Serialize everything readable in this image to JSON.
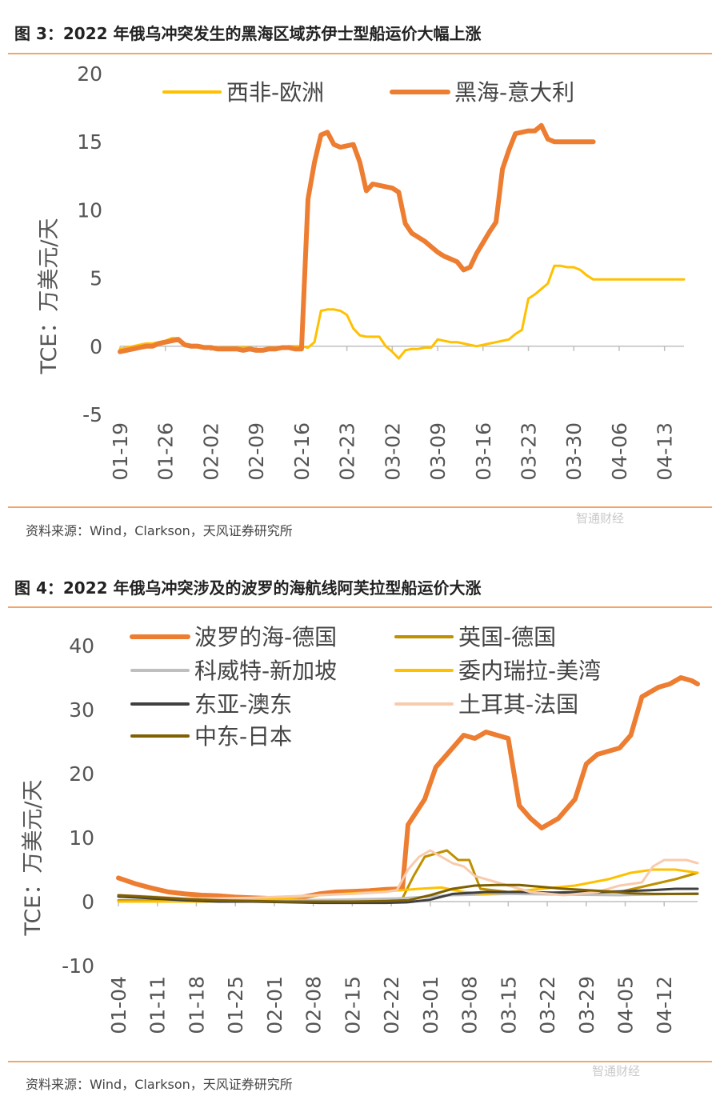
{
  "figures": [
    {
      "title": "图 3：2022 年俄乌冲突发生的黑海区域苏伊士型船运价大幅上涨",
      "source": "资料来源：Wind，Clarkson，天风证券研究所",
      "watermark": "智通财经"
    },
    {
      "title": "图 4：2022 年俄乌冲突涉及的波罗的海航线阿芙拉型船运价大涨",
      "source": "资料来源：Wind，Clarkson，天风证券研究所",
      "watermark": "智通财经"
    }
  ],
  "chart_data": [
    {
      "type": "line",
      "ylabel": "TCE：万美元/天",
      "ylim": [
        -5,
        20
      ],
      "yticks": [
        "20",
        "15",
        "10",
        "5",
        "0",
        "-5"
      ],
      "xticks": [
        "01-19",
        "01-26",
        "02-02",
        "02-09",
        "02-16",
        "02-23",
        "03-02",
        "03-09",
        "03-16",
        "03-23",
        "03-30",
        "04-06",
        "04-13"
      ],
      "legend": "top",
      "series": [
        {
          "name": "西非-欧洲",
          "color": "#ffc000",
          "x": [
            0,
            1,
            2,
            3,
            4,
            5,
            6,
            7,
            8,
            9,
            10,
            11,
            12,
            13,
            14,
            15,
            16,
            17,
            18,
            19,
            20,
            21,
            22,
            23,
            24,
            25,
            26,
            27,
            28,
            29,
            30,
            31,
            32,
            33,
            34,
            35,
            36,
            37,
            38,
            39,
            40,
            41,
            42,
            43,
            44,
            45,
            46,
            47,
            48,
            49,
            50,
            51,
            52,
            53,
            54,
            55,
            56,
            57,
            58,
            59,
            60,
            61,
            62,
            63,
            64,
            65,
            66,
            67,
            68,
            69,
            70,
            71,
            72,
            73,
            74,
            75,
            76,
            77,
            78,
            79,
            80,
            81,
            82,
            83,
            84,
            85,
            86,
            87
          ],
          "y": [
            -0.2,
            -0.1,
            0,
            0.1,
            0.2,
            0.2,
            0.3,
            0.4,
            0.6,
            0.6,
            0.2,
            0.1,
            0.1,
            0,
            0,
            -0.1,
            -0.1,
            -0.1,
            -0.1,
            -0.1,
            -0.1,
            -0.2,
            -0.2,
            -0.1,
            -0.1,
            -0.1,
            0,
            0,
            0,
            -0.1,
            0.3,
            2.6,
            2.7,
            2.7,
            2.6,
            2.3,
            1.3,
            0.8,
            0.7,
            0.7,
            0.7,
            0,
            -0.4,
            -0.9,
            -0.3,
            -0.2,
            -0.2,
            -0.1,
            -0.1,
            0.5,
            0.4,
            0.3,
            0.3,
            0.2,
            0.1,
            0,
            0.1,
            0.2,
            0.3,
            0.4,
            0.5,
            0.9,
            1.2,
            3.5,
            3.8,
            4.2,
            4.6,
            5.9,
            5.9,
            5.8,
            5.8,
            5.6,
            5.2,
            4.9,
            4.9,
            4.9,
            4.9,
            4.9,
            4.9,
            4.9,
            4.9,
            4.9,
            4.9,
            4.9,
            4.9,
            4.9,
            4.9,
            4.9
          ]
        },
        {
          "name": "黑海-意大利",
          "color": "#ed7d31",
          "x": [
            0,
            1,
            2,
            3,
            4,
            5,
            6,
            7,
            8,
            9,
            10,
            11,
            12,
            13,
            14,
            15,
            16,
            17,
            18,
            19,
            20,
            21,
            22,
            23,
            24,
            25,
            26,
            27,
            28,
            29,
            30,
            31,
            32,
            33,
            34,
            35,
            36,
            37,
            38,
            39,
            40,
            41,
            42,
            43,
            44,
            45,
            46,
            47,
            48,
            49,
            50,
            51,
            52,
            53,
            54,
            55,
            56,
            57,
            58,
            59,
            60,
            61,
            62,
            63,
            64,
            65,
            66,
            67,
            68,
            69,
            70,
            71,
            72,
            73
          ],
          "y": [
            -0.4,
            -0.3,
            -0.2,
            -0.1,
            0,
            0,
            0.2,
            0.3,
            0.4,
            0.5,
            0.1,
            0,
            0,
            -0.1,
            -0.1,
            -0.2,
            -0.2,
            -0.2,
            -0.2,
            -0.3,
            -0.2,
            -0.3,
            -0.3,
            -0.2,
            -0.2,
            -0.1,
            -0.1,
            -0.2,
            -0.2,
            10.8,
            13.5,
            15.5,
            15.7,
            14.8,
            14.6,
            14.7,
            14.8,
            13.5,
            11.4,
            11.9,
            11.8,
            11.7,
            11.6,
            11.3,
            9,
            8.3,
            8,
            7.7,
            7.3,
            6.9,
            6.6,
            6.4,
            6.2,
            5.6,
            5.8,
            6.8,
            7.6,
            8.4,
            9.1,
            13,
            14.4,
            15.6,
            15.7,
            15.8,
            15.8,
            16.2,
            15.2,
            15,
            15,
            15,
            15,
            15,
            15,
            15
          ]
        }
      ]
    },
    {
      "type": "line",
      "ylabel": "TCE：万美元/天",
      "ylim": [
        -10,
        40
      ],
      "yticks": [
        "40",
        "30",
        "20",
        "10",
        "0",
        "-10"
      ],
      "xticks": [
        "01-04",
        "01-11",
        "01-18",
        "01-25",
        "02-01",
        "02-08",
        "02-15",
        "02-22",
        "03-01",
        "03-08",
        "03-15",
        "03-22",
        "03-29",
        "04-05",
        "04-12"
      ],
      "legend": "top-left",
      "series": [
        {
          "name": "波罗的海-德国",
          "color": "#ed7d31",
          "x": [
            0,
            3,
            6,
            9,
            12,
            15,
            18,
            21,
            24,
            27,
            30,
            33,
            36,
            39,
            42,
            45,
            48,
            51,
            52,
            55,
            57,
            60,
            62,
            64,
            66,
            68,
            70,
            72,
            74,
            76,
            79,
            80,
            82,
            84,
            86,
            88,
            90,
            92,
            94,
            96,
            97,
            99,
            101,
            103,
            104
          ],
          "y": [
            3.7,
            2.8,
            2.1,
            1.5,
            1.2,
            1,
            0.9,
            0.7,
            0.6,
            0.5,
            0.5,
            0.7,
            1.2,
            1.5,
            1.6,
            1.7,
            1.9,
            2,
            12,
            16,
            21,
            24,
            26,
            25.5,
            26.5,
            26,
            25.5,
            15,
            13,
            11.5,
            13,
            14,
            16,
            21.5,
            23,
            23.5,
            24,
            26,
            32,
            33,
            33.5,
            34,
            35,
            34.5,
            34
          ]
        },
        {
          "name": "英国-德国",
          "color": "#bf9000",
          "x": [
            0,
            10,
            20,
            30,
            40,
            50,
            51,
            53,
            55,
            57,
            59,
            61,
            63,
            65,
            70,
            80,
            90,
            95,
            100,
            104
          ],
          "y": [
            0.2,
            0.1,
            0,
            0,
            0,
            0,
            0.5,
            4,
            7,
            7.5,
            8,
            6.5,
            6.5,
            2,
            1.5,
            1.2,
            1.5,
            2.5,
            3.5,
            4.5
          ]
        },
        {
          "name": "科威特-新加坡",
          "color": "#bfbfbf",
          "x": [
            0,
            10,
            20,
            30,
            40,
            50,
            60,
            70,
            80,
            90,
            100,
            104
          ],
          "y": [
            0.8,
            0.5,
            0.3,
            0.2,
            0.3,
            0.5,
            1,
            1.2,
            1.1,
            1,
            1.2,
            1.3
          ]
        },
        {
          "name": "委内瑞拉-美湾",
          "color": "#ffc000",
          "x": [
            0,
            8,
            16,
            24,
            30,
            36,
            42,
            48,
            54,
            58,
            62,
            66,
            70,
            76,
            82,
            88,
            92,
            96,
            100,
            104
          ],
          "y": [
            0,
            0,
            0,
            0.2,
            0.5,
            1,
            1.3,
            1.6,
            2,
            2.2,
            1.5,
            1.2,
            1.5,
            2,
            2.5,
            3.5,
            4.5,
            5,
            5,
            4.5
          ]
        },
        {
          "name": "东亚-澳东",
          "color": "#404040",
          "x": [
            0,
            6,
            12,
            18,
            24,
            30,
            36,
            42,
            48,
            52,
            56,
            60,
            66,
            72,
            78,
            84,
            90,
            96,
            100,
            104
          ],
          "y": [
            0.8,
            0.5,
            0.2,
            0,
            0,
            -0.1,
            -0.2,
            -0.2,
            -0.2,
            -0.1,
            0.3,
            1.2,
            1.5,
            1.5,
            1.4,
            1.5,
            1.6,
            1.8,
            2,
            2
          ]
        },
        {
          "name": "土耳其-法国",
          "color": "#f8cbad",
          "x": [
            0,
            6,
            12,
            18,
            24,
            30,
            36,
            42,
            48,
            50,
            52,
            54,
            56,
            58,
            60,
            62,
            64,
            68,
            74,
            80,
            86,
            90,
            94,
            96,
            98,
            100,
            102,
            104
          ],
          "y": [
            1,
            0.8,
            0.5,
            0.5,
            0.6,
            0.8,
            1,
            1.2,
            1.5,
            1.8,
            5,
            7,
            8,
            7,
            6,
            5.5,
            4,
            3,
            1.5,
            1,
            1.5,
            2.5,
            3,
            5.5,
            6.5,
            6.5,
            6.5,
            6
          ]
        },
        {
          "name": "中东-日本",
          "color": "#7f6000",
          "x": [
            0,
            6,
            12,
            18,
            24,
            30,
            36,
            42,
            48,
            52,
            56,
            60,
            64,
            68,
            72,
            76,
            80,
            84,
            88,
            92,
            96,
            100,
            104
          ],
          "y": [
            1,
            0.7,
            0.4,
            0.2,
            0.1,
            0,
            0,
            0,
            0.1,
            0.2,
            1,
            2,
            2.5,
            2.6,
            2.6,
            2.3,
            2,
            1.8,
            1.6,
            1.3,
            1.2,
            1.2,
            1.2
          ]
        }
      ]
    }
  ]
}
